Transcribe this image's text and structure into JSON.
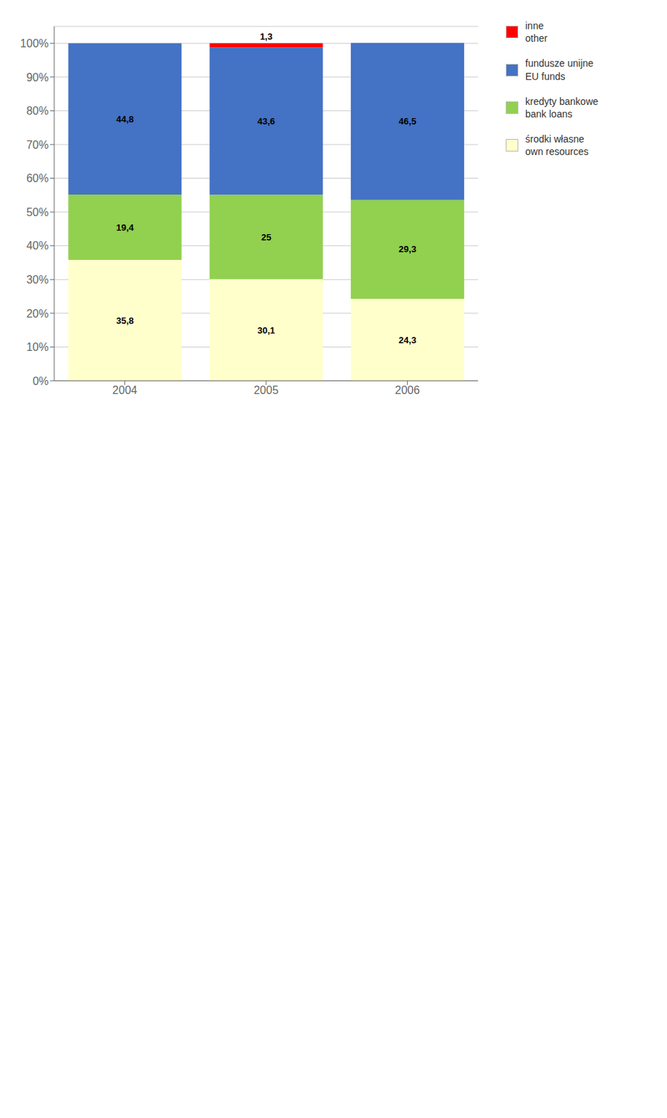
{
  "chart_data": {
    "type": "bar",
    "stacked": true,
    "data_labels": true,
    "grid": true,
    "legend": "right",
    "categories": [
      "2004",
      "2005",
      "2006"
    ],
    "series": [
      {
        "name": "środki własne\nown resources",
        "color": "#ffffcc",
        "values": [
          35.8,
          30.1,
          24.3
        ],
        "value_labels": [
          "35,8",
          "30,1",
          "24,3"
        ]
      },
      {
        "name": "kredyty bankowe\nbank loans",
        "color": "#92d050",
        "values": [
          19.4,
          25.0,
          29.3
        ],
        "value_labels": [
          "19,4",
          "25",
          "29,3"
        ]
      },
      {
        "name": "fundusze unijne\nEU funds",
        "color": "#4472c4",
        "values": [
          44.8,
          43.6,
          46.5
        ],
        "value_labels": [
          "44,8",
          "43,6",
          "46,5"
        ]
      },
      {
        "name": "inne\nother",
        "color": "#ff0000",
        "values": [
          0.0,
          1.3,
          0.0
        ],
        "value_labels": [
          null,
          "1,3",
          null
        ]
      }
    ],
    "ylim": [
      0,
      105
    ],
    "yticks": [
      {
        "value": 0,
        "label": "0%"
      },
      {
        "value": 10,
        "label": "10%"
      },
      {
        "value": 20,
        "label": "20%"
      },
      {
        "value": 30,
        "label": "30%"
      },
      {
        "value": 40,
        "label": "40%"
      },
      {
        "value": 50,
        "label": "50%"
      },
      {
        "value": 60,
        "label": "60%"
      },
      {
        "value": 70,
        "label": "70%"
      },
      {
        "value": 80,
        "label": "80%"
      },
      {
        "value": 90,
        "label": "90%"
      },
      {
        "value": 100,
        "label": "100%"
      }
    ]
  }
}
